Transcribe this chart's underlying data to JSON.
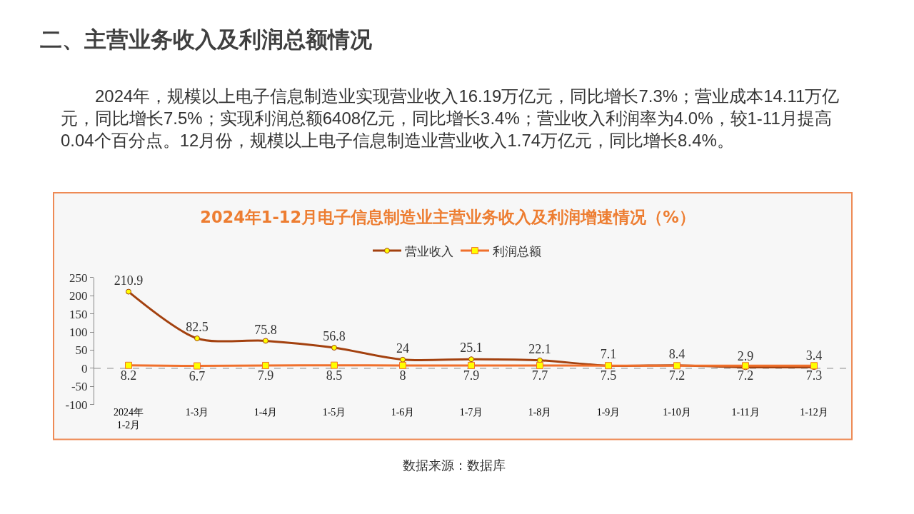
{
  "chart_data": {
    "type": "line",
    "title": "2024年1-12月电子信息制造业主营业务收入及利润增速情况（%）",
    "annotations": [
      "二、主营业务收入及利润总额情况",
      "2024年，规模以上电子信息制造业实现营业收入16.19万亿元，同比增长7.3%；营业成本14.11万亿元，同比增长7.5%；实现利润总额6408亿元，同比增长3.4%；营业收入利润率为4.0%，较1-11月提高0.04个百分点。12月份，规模以上电子信息制造业营业收入1.74万亿元，同比增长8.4%。",
      "数据来源：数据库"
    ],
    "categories": [
      "2024年\n1-2月",
      "1-3月",
      "1-4月",
      "1-5月",
      "1-6月",
      "1-7月",
      "1-8月",
      "1-9月",
      "1-10月",
      "1-11月",
      "1-12月"
    ],
    "series": [
      {
        "name": "营业收入",
        "color": "#a3410f",
        "marker": "circle",
        "values": [
          210.9,
          82.5,
          75.8,
          56.8,
          24,
          25.1,
          22.1,
          7.1,
          8.4,
          2.9,
          3.4
        ]
      },
      {
        "name": "利润总额",
        "color": "#f0702c",
        "marker": "square",
        "values": [
          8.2,
          6.7,
          7.9,
          8.5,
          8,
          7.9,
          7.7,
          7.5,
          7.2,
          7.2,
          7.3
        ]
      }
    ],
    "ylim": [
      -100,
      250
    ],
    "yticks": [
      -100,
      -50,
      0,
      50,
      100,
      150,
      200,
      250
    ],
    "ref_lines": [
      {
        "axis": "y",
        "value": 0,
        "color": "#888888",
        "line_style": "dashed"
      }
    ],
    "data_labels": true,
    "legend": "top",
    "grid": false,
    "line_style": "solid"
  }
}
